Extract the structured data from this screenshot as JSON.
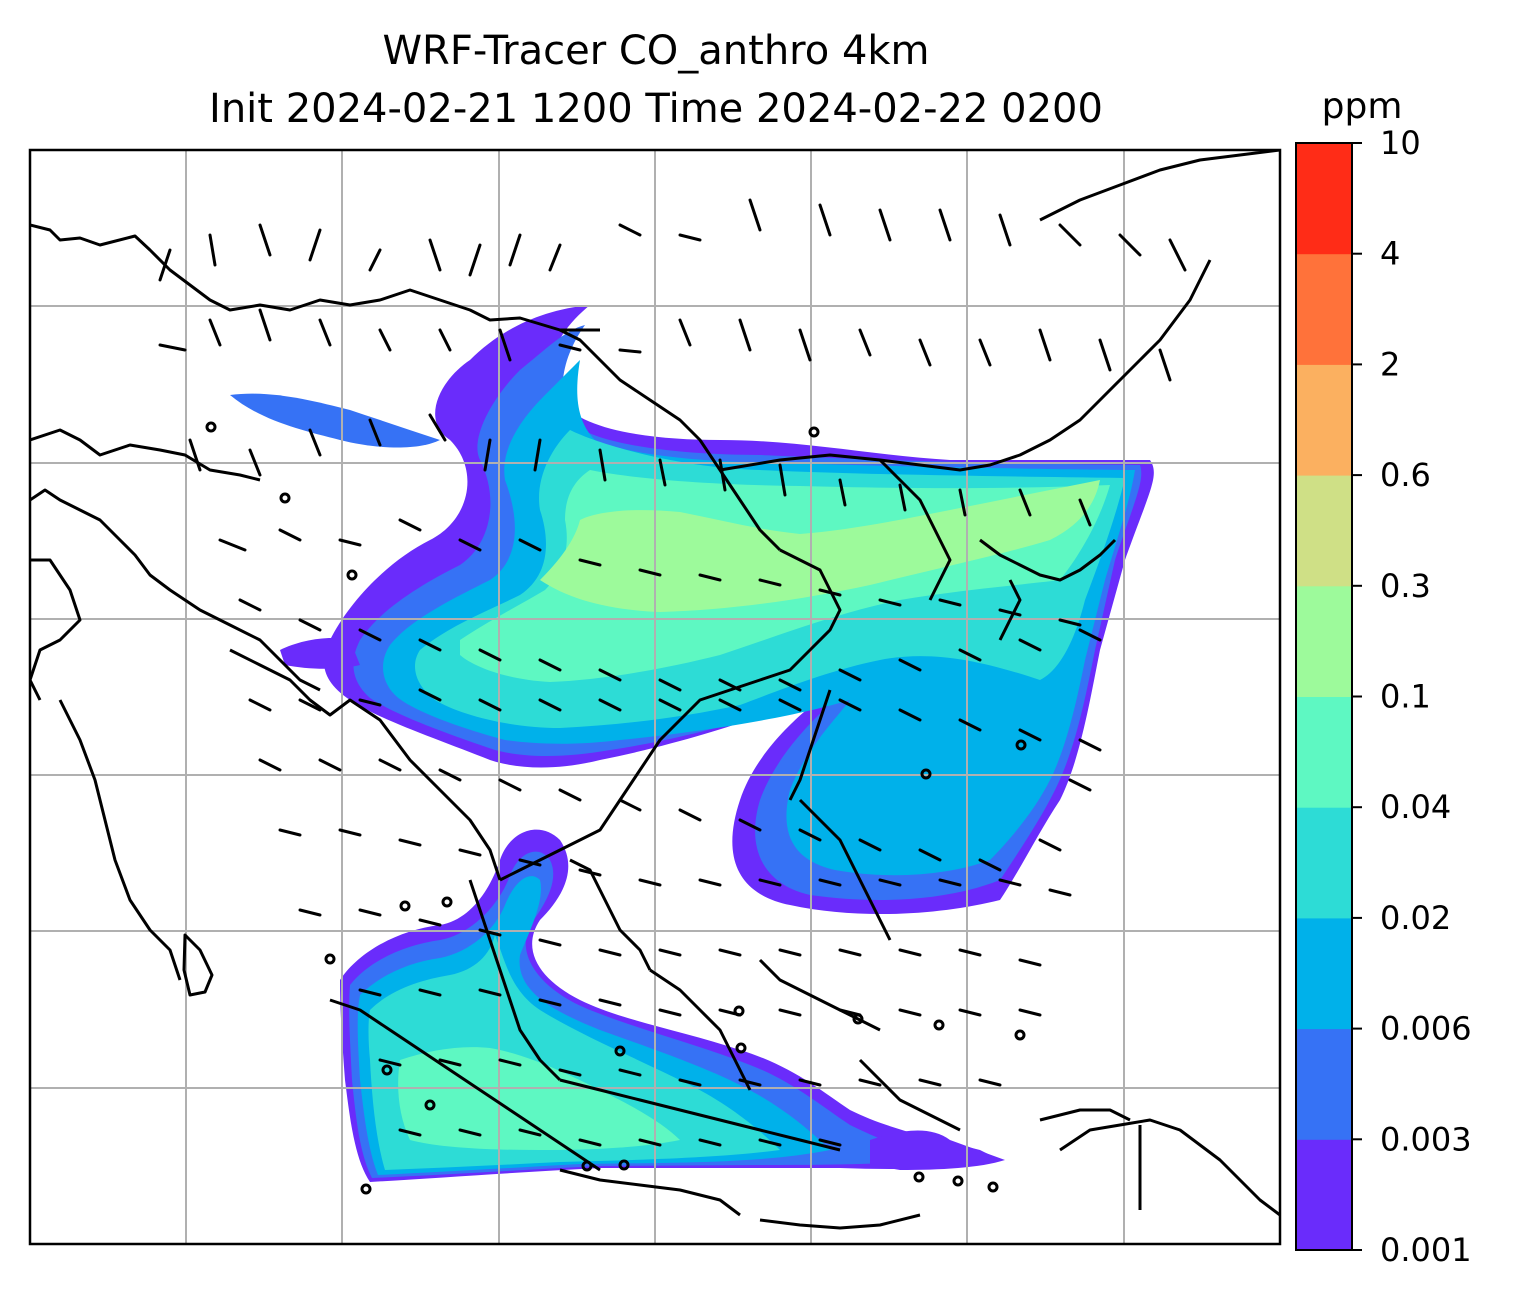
{
  "chart_data": {
    "type": "heatmap",
    "title": "WRF-Tracer CO_anthro 4km",
    "subtitle": "Init 2024-02-21 1200 Time 2024-02-22 0200",
    "map": {
      "region": "South & East Asia / Maritime Continent",
      "gridlines": true,
      "coastlines": true,
      "wind_barbs": true
    },
    "colorbar": {
      "unit": "ppm",
      "levels": [
        "0.001",
        "0.003",
        "0.006",
        "0.02",
        "0.04",
        "0.1",
        "0.3",
        "0.6",
        "2",
        "4",
        "10"
      ],
      "colors": [
        "#6a2cfb",
        "#3672f5",
        "#00b1ea",
        "#2ddcd6",
        "#5ef8c2",
        "#9dfa9b",
        "#cfe086",
        "#fbb060",
        "#ff723a",
        "#ff2c17"
      ]
    }
  }
}
